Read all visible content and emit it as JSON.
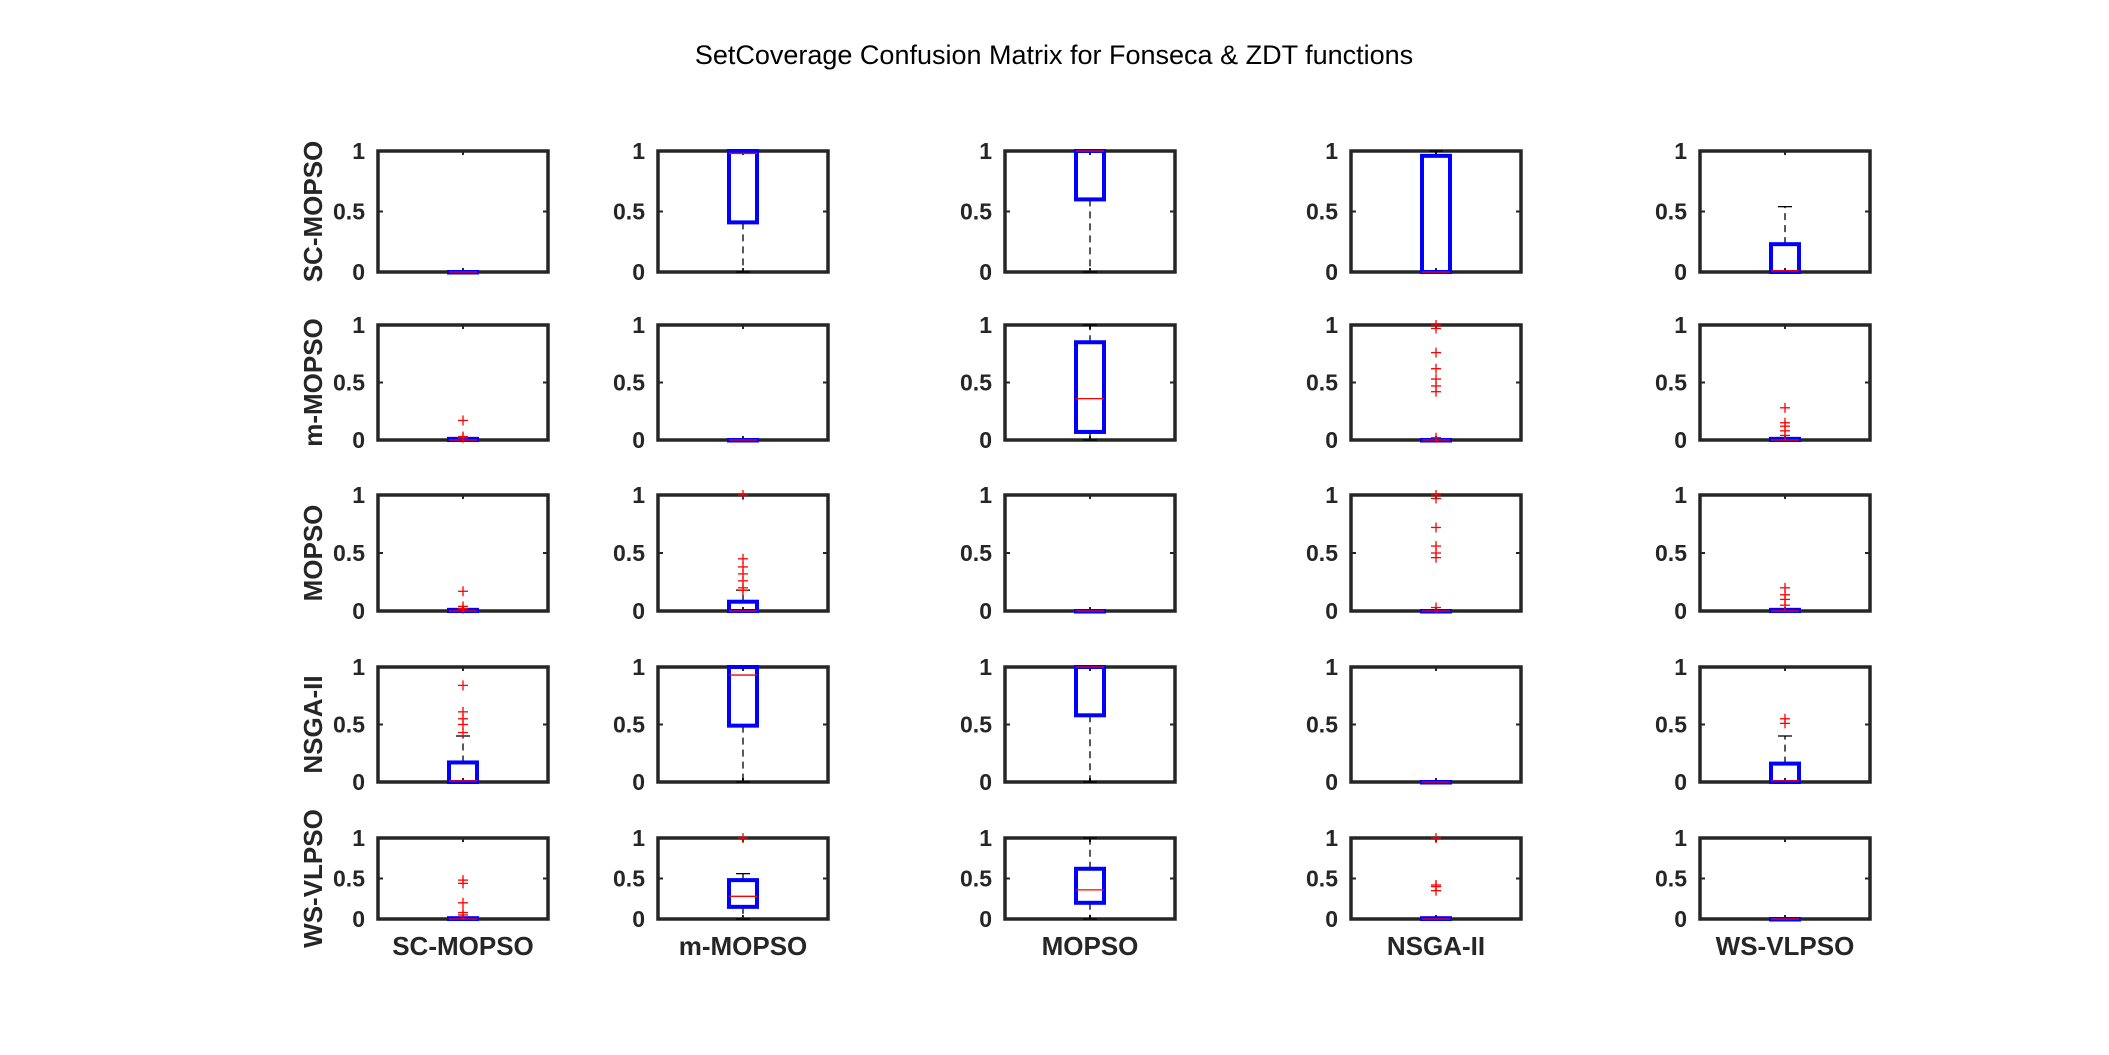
{
  "chart_data": {
    "type": "box",
    "title": "SetCoverage Confusion Matrix for Fonseca & ZDT functions",
    "row_labels": [
      "SC-MOPSO",
      "m-MOPSO",
      "MOPSO",
      "NSGA-II",
      "WS-VLPSO"
    ],
    "col_labels": [
      "SC-MOPSO",
      "m-MOPSO",
      "MOPSO",
      "NSGA-II",
      "WS-VLPSO"
    ],
    "y_ticks": [
      "0",
      "0.5",
      "1"
    ],
    "ylim": [
      0,
      1
    ],
    "colors": {
      "box": "#0000ff",
      "median": "#ff0000",
      "outlier": "#ff0000",
      "whisker": "#000000",
      "axes": "#262626"
    },
    "boxes": [
      [
        {
          "q1": 0,
          "median": 0,
          "q3": 0,
          "lo": 0,
          "hi": 0,
          "outliers": []
        },
        {
          "q1": 0.41,
          "median": 0.98,
          "q3": 1,
          "lo": 0,
          "hi": 1,
          "outliers": []
        },
        {
          "q1": 0.6,
          "median": 1,
          "q3": 1,
          "lo": 0,
          "hi": 1,
          "outliers": []
        },
        {
          "q1": 0,
          "median": 0,
          "q3": 0.96,
          "lo": 0,
          "hi": 1,
          "outliers": []
        },
        {
          "q1": 0,
          "median": 0.01,
          "q3": 0.23,
          "lo": 0,
          "hi": 0.54,
          "outliers": []
        }
      ],
      [
        {
          "q1": 0,
          "median": 0,
          "q3": 0.01,
          "lo": 0,
          "hi": 0.02,
          "outliers": [
            0.17,
            0.03,
            0.02
          ]
        },
        {
          "q1": 0,
          "median": 0,
          "q3": 0,
          "lo": 0,
          "hi": 0,
          "outliers": []
        },
        {
          "q1": 0.07,
          "median": 0.36,
          "q3": 0.85,
          "lo": 0,
          "hi": 1,
          "outliers": []
        },
        {
          "q1": 0,
          "median": 0,
          "q3": 0,
          "lo": 0,
          "hi": 0,
          "outliers": [
            1,
            0.97,
            0.76,
            0.62,
            0.53,
            0.47,
            0.42,
            0.02
          ]
        },
        {
          "q1": 0,
          "median": 0,
          "q3": 0.01,
          "lo": 0,
          "hi": 0.02,
          "outliers": [
            0.28,
            0.15,
            0.12,
            0.08,
            0.04
          ]
        }
      ],
      [
        {
          "q1": 0,
          "median": 0,
          "q3": 0.01,
          "lo": 0,
          "hi": 0.02,
          "outliers": [
            0.17,
            0.04,
            0.02
          ]
        },
        {
          "q1": 0,
          "median": 0,
          "q3": 0.08,
          "lo": 0,
          "hi": 0.18,
          "outliers": [
            1,
            0.45,
            0.38,
            0.32,
            0.26,
            0.2,
            0.18
          ]
        },
        {
          "q1": 0,
          "median": 0,
          "q3": 0,
          "lo": 0,
          "hi": 0,
          "outliers": []
        },
        {
          "q1": 0,
          "median": 0,
          "q3": 0,
          "lo": 0,
          "hi": 0,
          "outliers": [
            1,
            0.97,
            0.72,
            0.56,
            0.5,
            0.46,
            0.03
          ]
        },
        {
          "q1": 0,
          "median": 0,
          "q3": 0.01,
          "lo": 0,
          "hi": 0.02,
          "outliers": [
            0.2,
            0.14,
            0.1,
            0.05
          ]
        }
      ],
      [
        {
          "q1": 0,
          "median": 0.01,
          "q3": 0.17,
          "lo": 0,
          "hi": 0.4,
          "outliers": [
            0.84,
            0.61,
            0.55,
            0.5,
            0.43
          ]
        },
        {
          "q1": 0.49,
          "median": 0.93,
          "q3": 1,
          "lo": 0,
          "hi": 1,
          "outliers": []
        },
        {
          "q1": 0.58,
          "median": 1,
          "q3": 1,
          "lo": 0,
          "hi": 1,
          "outliers": []
        },
        {
          "q1": 0,
          "median": 0,
          "q3": 0,
          "lo": 0,
          "hi": 0,
          "outliers": []
        },
        {
          "q1": 0,
          "median": 0.01,
          "q3": 0.16,
          "lo": 0,
          "hi": 0.4,
          "outliers": [
            0.55,
            0.51
          ]
        }
      ],
      [
        {
          "q1": 0,
          "median": 0,
          "q3": 0.01,
          "lo": 0,
          "hi": 0.02,
          "outliers": [
            0.48,
            0.44,
            0.2,
            0.08,
            0.05
          ]
        },
        {
          "q1": 0.15,
          "median": 0.28,
          "q3": 0.48,
          "lo": 0,
          "hi": 0.56,
          "outliers": [
            1
          ]
        },
        {
          "q1": 0.2,
          "median": 0.36,
          "q3": 0.62,
          "lo": 0,
          "hi": 1,
          "outliers": []
        },
        {
          "q1": 0,
          "median": 0,
          "q3": 0.01,
          "lo": 0,
          "hi": 0.02,
          "outliers": [
            1,
            0.42,
            0.4,
            0.35
          ]
        },
        {
          "q1": 0,
          "median": 0,
          "q3": 0,
          "lo": 0,
          "hi": 0,
          "outliers": []
        }
      ]
    ]
  }
}
